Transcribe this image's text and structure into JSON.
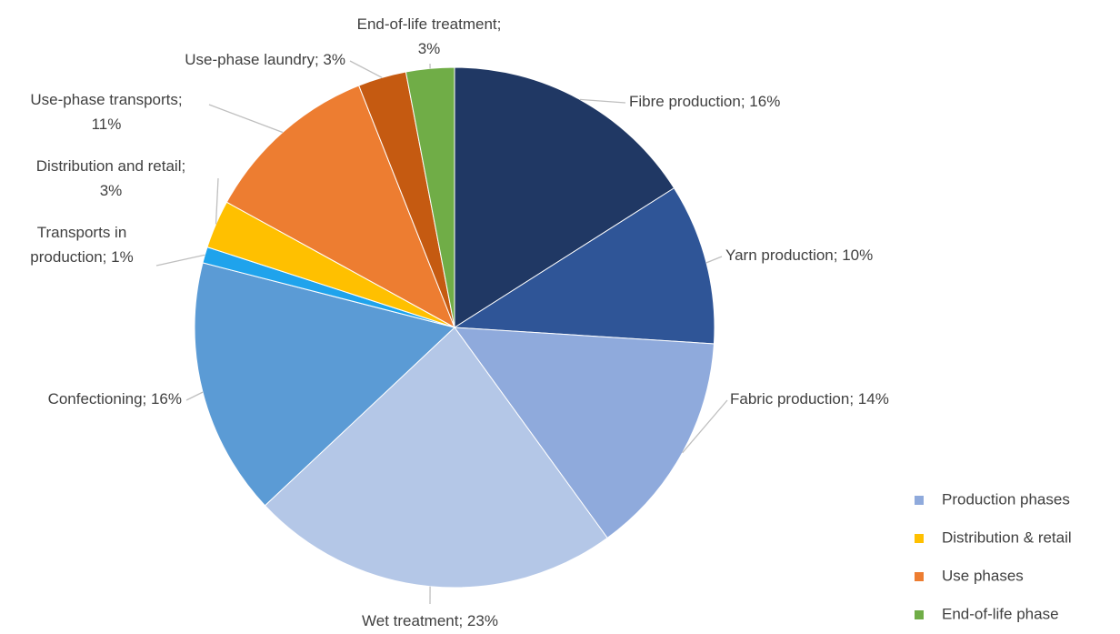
{
  "chart_data": {
    "type": "pie",
    "labels": [
      [
        "Fibre production; 16%"
      ],
      [
        "Yarn production; 10%"
      ],
      [
        "Fabric production; 14%"
      ],
      [
        "Wet treatment; 23%"
      ],
      [
        "Confectioning; 16%"
      ],
      [
        "Transports in",
        "production; 1%"
      ],
      [
        "Distribution and retail;",
        "3%"
      ],
      [
        "Use-phase transports;",
        "11%"
      ],
      [
        "Use-phase laundry; 3%"
      ],
      [
        "End-of-life treatment;",
        "3%"
      ]
    ],
    "values": [
      16,
      10,
      14,
      23,
      16,
      1,
      3,
      11,
      3,
      3
    ],
    "colors": [
      "#203864",
      "#2f5597",
      "#8faadc",
      "#b4c7e7",
      "#5b9bd5",
      "#1fa3ec",
      "#ffc000",
      "#ed7d31",
      "#c55a11",
      "#70ad47"
    ],
    "legend": [
      {
        "name": "Production phases",
        "color": "#8faadc"
      },
      {
        "name": "Distribution & retail",
        "color": "#ffc000"
      },
      {
        "name": "Use phases",
        "color": "#ed7d31"
      },
      {
        "name": "End-of-life phase",
        "color": "#70ad47"
      }
    ]
  }
}
